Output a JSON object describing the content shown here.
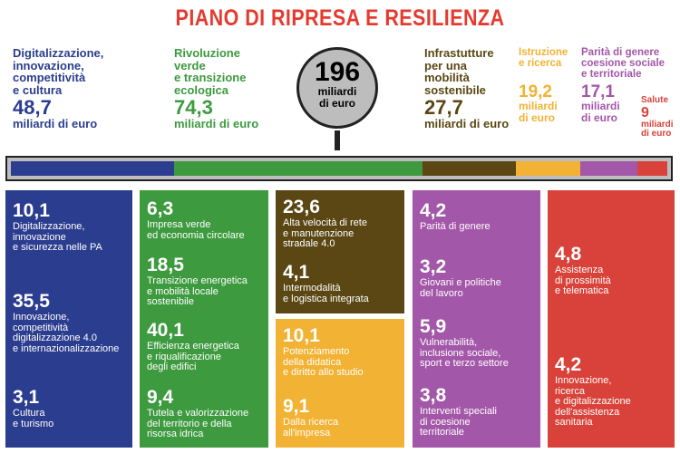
{
  "title": "PIANO DI RIPRESA E RESILIENZA",
  "total": {
    "value": "196",
    "label": "miliardi\ndi euro"
  },
  "colors": {
    "title": "#e53a2f",
    "digital": "#2b3d8f",
    "green": "#3d9a3f",
    "infra": "#5a4713",
    "istruzione": "#f2b233",
    "parita": "#a357a8",
    "salute": "#d9423a"
  },
  "chart_data": {
    "type": "bar",
    "title": "PIANO DI RIPRESA E RESILIENZA",
    "total": 196,
    "unit": "miliardi di euro",
    "categories": [
      "Digitalizzazione, innovazione, competitività e cultura",
      "Rivoluzione verde e transizione ecologica",
      "Infrastutture per una mobilità sostenibile",
      "Istruzione e ricerca",
      "Parità di genere coesione sociale e territoriale",
      "Salute"
    ],
    "values": [
      48.7,
      74.3,
      27.7,
      19.2,
      17.1,
      9
    ],
    "breakdown": [
      {
        "mission": "Digitalizzazione, innovazione, competitività e cultura",
        "items": [
          {
            "value": 10.1,
            "label": "Digitalizzazione, innovazione e sicurezza nelle PA"
          },
          {
            "value": 35.5,
            "label": "Innovazione, competitività digitalizzazione 4.0 e internazionalizzazione"
          },
          {
            "value": 3.1,
            "label": "Cultura e turismo"
          }
        ]
      },
      {
        "mission": "Rivoluzione verde e transizione ecologica",
        "items": [
          {
            "value": 6.3,
            "label": "Impresa verde ed economia circolare"
          },
          {
            "value": 18.5,
            "label": "Transizione energetica e mobilità locale sostenibile"
          },
          {
            "value": 40.1,
            "label": "Efficienza energetica e riqualificazione degli edifici"
          },
          {
            "value": 9.4,
            "label": "Tutela e valorizzazione del territorio e della risorsa idrica"
          }
        ]
      },
      {
        "mission": "Infrastutture per una mobilità sostenibile",
        "items": [
          {
            "value": 23.6,
            "label": "Alta velocità di rete e manutenzione stradale 4.0"
          },
          {
            "value": 4.1,
            "label": "Intermodalità e logistica integrata"
          }
        ]
      },
      {
        "mission": "Istruzione e ricerca",
        "items": [
          {
            "value": 10.1,
            "label": "Potenziamento della didatica e diritto allo studio"
          },
          {
            "value": 9.1,
            "label": "Dalla ricerca all'impresa"
          }
        ]
      },
      {
        "mission": "Parità di genere coesione sociale e territoriale",
        "items": [
          {
            "value": 4.2,
            "label": "Parità di genere"
          },
          {
            "value": 3.2,
            "label": "Giovani e politiche del lavoro"
          },
          {
            "value": 5.9,
            "label": "Vulnerabilità, inclusione sociale, sport e terzo settore"
          },
          {
            "value": 3.8,
            "label": "Interventi speciali di coesione territoriale"
          }
        ]
      },
      {
        "mission": "Salute",
        "items": [
          {
            "value": 4.8,
            "label": "Assistenza di prossimità e telematica"
          },
          {
            "value": 4.2,
            "label": "Innovazione, ricerca e digitalizzazione dell'assistenza sanitaria"
          }
        ]
      }
    ]
  },
  "missions": [
    {
      "name": "Digitalizzazione,\ninnovazione,\ncompetitività\ne cultura",
      "value": "48,7",
      "unit": "miliardi di euro"
    },
    {
      "name": "Rivoluzione\nverde\ne transizione\necologica",
      "value": "74,3",
      "unit": "miliardi di euro"
    },
    {
      "name": "Infrastutture\nper una\nmobilità\nsostenibile",
      "value": "27,7",
      "unit": "miliardi di euro"
    },
    {
      "name": "Istruzione\ne ricerca",
      "value": "19,2",
      "unit": "miliardi\ndi euro"
    },
    {
      "name": "Parità di genere\ncoesione sociale\ne territoriale",
      "value": "17,1",
      "unit": "miliardi\ndi euro"
    },
    {
      "name": "Salute",
      "value": "9",
      "unit": "miliardi\ndi euro"
    }
  ],
  "panels": [
    {
      "items": [
        {
          "value": "10,1",
          "text": "Digitalizzazione,\ninnovazione\ne sicurezza nelle PA"
        },
        {
          "value": "35,5",
          "text": "Innovazione,\ncompetitività\ndigitalizzazione 4.0\ne internazionalizzazione"
        },
        {
          "value": "3,1",
          "text": "Cultura\ne turismo"
        }
      ]
    },
    {
      "items": [
        {
          "value": "6,3",
          "text": "Impresa verde\ned economia circolare"
        },
        {
          "value": "18,5",
          "text": "Transizione energetica\ne mobilità locale\nsostenibile"
        },
        {
          "value": "40,1",
          "text": "Efficienza energetica\ne riqualificazione\ndegli edifici"
        },
        {
          "value": "9,4",
          "text": "Tutela e valorizzazione\ndel territorio e della\nrisorsa idrica"
        }
      ]
    },
    {
      "items": [
        {
          "value": "23,6",
          "text": "Alta velocità di rete\ne manutenzione\nstradale 4.0"
        },
        {
          "value": "4,1",
          "text": "Intermodalità\ne logistica integrata"
        }
      ]
    },
    {
      "items": [
        {
          "value": "10,1",
          "text": "Potenziamento\ndella didatica\ne diritto allo studio"
        },
        {
          "value": "9,1",
          "text": "Dalla ricerca\nall'impresa"
        }
      ]
    },
    {
      "items": [
        {
          "value": "4,2",
          "text": "Parità di genere"
        },
        {
          "value": "3,2",
          "text": "Giovani e politiche\ndel lavoro"
        },
        {
          "value": "5,9",
          "text": "Vulnerabilità,\ninclusione sociale,\nsport e terzo settore"
        },
        {
          "value": "3,8",
          "text": "Interventi speciali\ndi coesione\nterritoriale"
        }
      ]
    },
    {
      "items": [
        {
          "value": "4,8",
          "text": "Assistenza\ndi prossimità\ne telematica"
        },
        {
          "value": "4,2",
          "text": "Innovazione,\nricerca\ne digitalizzazione\ndell'assistenza\nsanitaria"
        }
      ]
    }
  ]
}
